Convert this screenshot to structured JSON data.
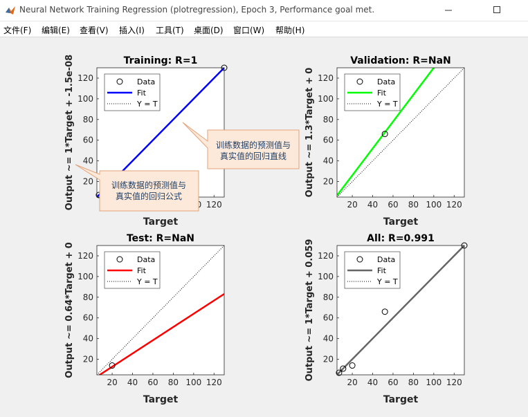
{
  "window": {
    "title": "Neural Network Training Regression (plotregression), Epoch 3, Performance goal met."
  },
  "menu": {
    "items": [
      "文件(F)",
      "编辑(E)",
      "查看(V)",
      "插入(I)",
      "工具(T)",
      "桌面(D)",
      "窗口(W)",
      "帮助(H)"
    ]
  },
  "legend_labels": {
    "data": "Data",
    "fit": "Fit",
    "y_equals_t": "Y = T"
  },
  "colors": {
    "training": "#0000ff",
    "validation": "#00ff00",
    "test": "#ff0000",
    "all": "#666666"
  },
  "callouts": {
    "top": [
      "训练数据的预测值与",
      "真实值的回归直线"
    ],
    "bottom": [
      "训练数据的预测值与",
      "真实值的回归公式"
    ]
  },
  "chart_data": [
    {
      "type": "scatter",
      "title": "Training: R=1",
      "xlabel": "Target",
      "ylabel": "Output ~= 1*Target + -1.5e-08",
      "xlim": [
        5,
        130
      ],
      "ylim": [
        5,
        130
      ],
      "xticks": [
        20,
        40,
        60,
        80,
        100,
        120
      ],
      "yticks": [
        20,
        40,
        60,
        80,
        100,
        120
      ],
      "points": [
        [
          7,
          7
        ],
        [
          130,
          130
        ]
      ],
      "fit": {
        "slope": 1,
        "intercept": 0
      },
      "fit_color": "#0000ff"
    },
    {
      "type": "scatter",
      "title": "Validation: R=NaN",
      "xlabel": "Target",
      "ylabel": "Output ~= 1.3*Target + 0",
      "xlim": [
        5,
        130
      ],
      "ylim": [
        5,
        130
      ],
      "xticks": [
        20,
        40,
        60,
        80,
        100,
        120
      ],
      "yticks": [
        20,
        40,
        60,
        80,
        100,
        120
      ],
      "points": [
        [
          52,
          66
        ]
      ],
      "fit": {
        "slope": 1.3,
        "intercept": 0
      },
      "fit_color": "#00ff00"
    },
    {
      "type": "scatter",
      "title": "Test: R=NaN",
      "xlabel": "Target",
      "ylabel": "Output ~= 0.64*Target + 0",
      "xlim": [
        5,
        130
      ],
      "ylim": [
        5,
        130
      ],
      "xticks": [
        20,
        40,
        60,
        80,
        100,
        120
      ],
      "yticks": [
        20,
        40,
        60,
        80,
        100,
        120
      ],
      "points": [
        [
          20,
          14
        ]
      ],
      "fit": {
        "slope": 0.64,
        "intercept": 0
      },
      "fit_color": "#ff0000"
    },
    {
      "type": "scatter",
      "title": "All: R=0.991",
      "xlabel": "Target",
      "ylabel": "Output ~= 1*Target + 0.059",
      "xlim": [
        5,
        130
      ],
      "ylim": [
        5,
        130
      ],
      "xticks": [
        20,
        40,
        60,
        80,
        100,
        120
      ],
      "yticks": [
        20,
        40,
        60,
        80,
        100,
        120
      ],
      "points": [
        [
          7,
          7
        ],
        [
          11,
          11
        ],
        [
          20,
          14
        ],
        [
          52,
          66
        ],
        [
          130,
          130
        ]
      ],
      "fit": {
        "slope": 1,
        "intercept": 0.059
      },
      "fit_color": "#666666"
    }
  ]
}
